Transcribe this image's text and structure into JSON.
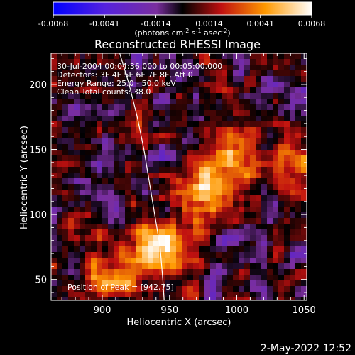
{
  "chart_data": {
    "type": "heatmap",
    "title": "Reconstructed RHESSI Image",
    "xlabel": "Heliocentric X (arcsec)",
    "ylabel": "Heliocentric Y (arcsec)",
    "xlim": [
      862,
      1052
    ],
    "ylim": [
      34,
      224
    ],
    "x_ticks": [
      900,
      950,
      1000,
      1050
    ],
    "y_ticks": [
      50,
      100,
      150,
      200
    ],
    "colorbar": {
      "label": "(photons cm^-2 s^-1 asec^-2)",
      "range": [
        -0.0068,
        0.0068
      ],
      "ticks": [
        "-0.0068",
        "-0.0041",
        "-0.0014",
        "0.0014",
        "0.0041",
        "0.0068"
      ],
      "colormap": "blue-purple-black-red-yellow-white"
    },
    "annotations": [
      "30-Jul-2004 00:04:36.000 to 00:05:00.000",
      "Detectors: 3F 4F 5F 6F 7F 8F, Att 0",
      "Energy Range: 25.0 - 50.0 keV",
      "Clean     Total counts: 38.0"
    ],
    "peak_label": "Position of Peak = [942,75]",
    "peak": {
      "x": 942,
      "y": 75
    },
    "bright_sources": [
      {
        "x": 942,
        "y": 75,
        "intensity": 0.0068
      },
      {
        "x": 975,
        "y": 115,
        "intensity": 0.0058
      },
      {
        "x": 993,
        "y": 143,
        "intensity": 0.005
      },
      {
        "x": 905,
        "y": 52,
        "intensity": 0.0045
      },
      {
        "x": 1040,
        "y": 148,
        "intensity": 0.0032
      }
    ],
    "limb_curve": [
      [
        913,
        224
      ],
      [
        920,
        200
      ],
      [
        926,
        175
      ],
      [
        931,
        150
      ],
      [
        935,
        125
      ],
      [
        939,
        100
      ],
      [
        943,
        75
      ],
      [
        945,
        50
      ],
      [
        946,
        34
      ]
    ],
    "grid": false
  },
  "footer": {
    "date": "2-May-2022 12:52"
  },
  "colors": {
    "background": "#000000",
    "text": "#ffffff",
    "limb": "#ffffff"
  }
}
